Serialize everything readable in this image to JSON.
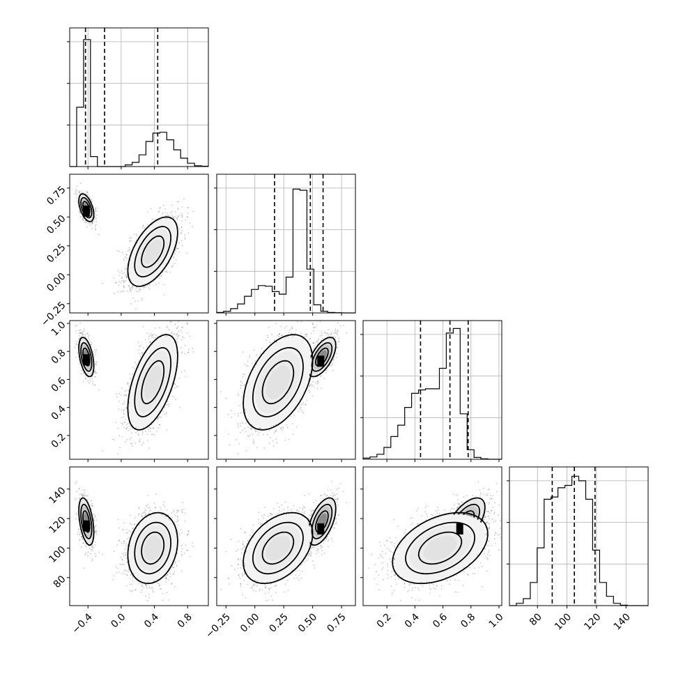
{
  "chart_data": {
    "type": "corner",
    "title": "",
    "parameters": [
      {
        "index": 0,
        "label": "",
        "range": [
          -0.62,
          1.05
        ],
        "ticks": [
          -0.4,
          0.0,
          0.4,
          0.8
        ],
        "tick_labels": [
          "−0.4",
          "0.0",
          "0.4",
          "0.8"
        ],
        "quantiles": [
          -0.43,
          -0.2,
          0.44
        ]
      },
      {
        "index": 1,
        "label": "",
        "range": [
          -0.33,
          0.87
        ],
        "ticks": [
          -0.25,
          0.0,
          0.25,
          0.5,
          0.75
        ],
        "tick_labels": [
          "−0.25",
          "0.00",
          "0.25",
          "0.50",
          "0.75"
        ],
        "quantiles": [
          0.17,
          0.48,
          0.59
        ]
      },
      {
        "index": 2,
        "label": "",
        "range": [
          0.03,
          1.02
        ],
        "ticks": [
          0.2,
          0.4,
          0.6,
          0.8,
          1.0
        ],
        "tick_labels": [
          "0.2",
          "0.4",
          "0.6",
          "0.8",
          "1.0"
        ],
        "quantiles": [
          0.44,
          0.65,
          0.78
        ]
      },
      {
        "index": 3,
        "label": "",
        "range": [
          61,
          155
        ],
        "ticks": [
          80,
          100,
          120,
          140
        ],
        "tick_labels": [
          "80",
          "100",
          "120",
          "140"
        ],
        "quantiles": [
          90,
          105,
          119
        ]
      }
    ],
    "histograms": [
      {
        "param": 0,
        "edges_start": -0.62,
        "bin_width": 0.0835,
        "counts": [
          0,
          355,
          760,
          60,
          0,
          0,
          0,
          0,
          10,
          25,
          70,
          150,
          200,
          205,
          160,
          100,
          50,
          20,
          5,
          2
        ],
        "ylim": [
          0,
          830
        ]
      },
      {
        "param": 1,
        "edges_start": -0.33,
        "bin_width": 0.06,
        "counts": [
          2,
          8,
          20,
          42,
          78,
          110,
          128,
          125,
          100,
          88,
          168,
          580,
          575,
          205,
          38,
          8,
          2,
          1,
          0,
          0
        ],
        "ylim": [
          0,
          650
        ]
      },
      {
        "param": 2,
        "edges_start": 0.03,
        "bin_width": 0.0495,
        "counts": [
          5,
          10,
          22,
          52,
          100,
          150,
          228,
          290,
          305,
          310,
          310,
          400,
          555,
          575,
          200,
          42,
          8,
          2,
          0,
          0
        ],
        "ylim": [
          0,
          610
        ]
      },
      {
        "param": 3,
        "edges_start": 61,
        "bin_width": 4.7,
        "counts": [
          0,
          5,
          15,
          50,
          125,
          230,
          235,
          255,
          260,
          280,
          270,
          230,
          120,
          50,
          20,
          5,
          1,
          0,
          0,
          0
        ],
        "ylim": [
          0,
          300
        ]
      }
    ],
    "modes": [
      {
        "weight": 0.33,
        "mean": [
          -0.42,
          0.58,
          0.76,
          118
        ],
        "sd": [
          0.045,
          0.06,
          0.07,
          8
        ]
      },
      {
        "weight": 0.67,
        "mean": [
          0.38,
          0.2,
          0.58,
          100
        ],
        "sd": [
          0.15,
          0.15,
          0.17,
          12
        ]
      }
    ],
    "density_peaks": [
      {
        "params": [
          0,
          1
        ],
        "x": -0.42,
        "y": 0.55
      },
      {
        "params": [
          0,
          2
        ],
        "x": -0.42,
        "y": 0.74
      },
      {
        "params": [
          1,
          2
        ],
        "x": 0.57,
        "y": 0.73
      },
      {
        "params": [
          0,
          3
        ],
        "x": -0.42,
        "y": 115
      },
      {
        "params": [
          1,
          3
        ],
        "x": 0.57,
        "y": 113
      },
      {
        "params": [
          2,
          3
        ],
        "x": 0.72,
        "y": 113
      }
    ],
    "grid": true,
    "legend": ""
  }
}
